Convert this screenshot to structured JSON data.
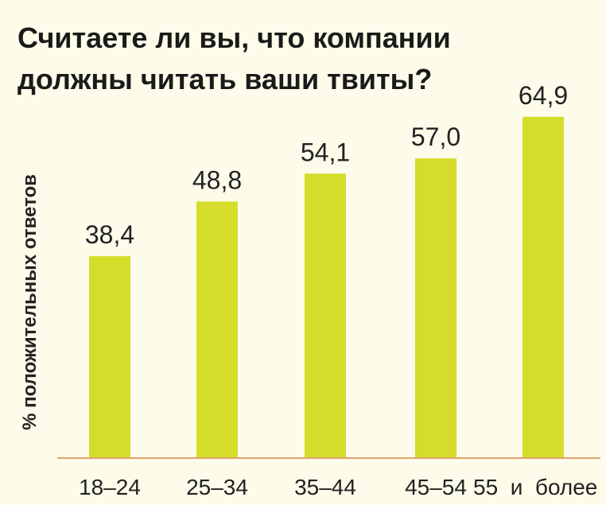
{
  "chart_data": {
    "type": "bar",
    "title_lines": [
      "Считаете ли вы, что компании",
      "должны читать ваши твиты?"
    ],
    "xlabel": "",
    "ylabel": "% положительных ответов",
    "categories": [
      "18–24",
      "25–34",
      "35–44",
      "45–54",
      "55  и  более"
    ],
    "values": [
      38.4,
      48.8,
      54.1,
      57.0,
      64.9
    ],
    "value_labels": [
      "38,4",
      "48,8",
      "54,1",
      "57,0",
      "64,9"
    ],
    "ylim": [
      0,
      72
    ],
    "grid": false,
    "legend": "none",
    "colors": {
      "bar": "#d5dd2a",
      "baseline": "#e0a36a",
      "background": "#fdfbe9"
    }
  }
}
